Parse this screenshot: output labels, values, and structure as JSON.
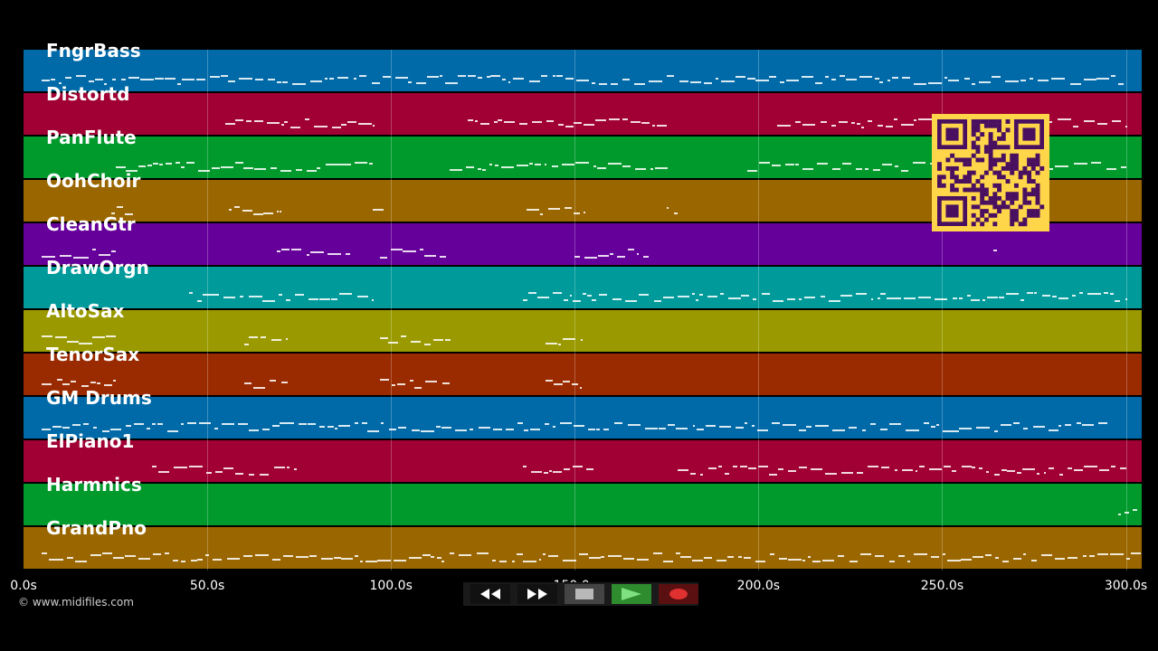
{
  "tracks": [
    {
      "name": "FngrBass",
      "color": "#006aa8"
    },
    {
      "name": "Distortd",
      "color": "#a10035"
    },
    {
      "name": "PanFlute",
      "color": "#009a2c"
    },
    {
      "name": "OohChoir",
      "color": "#9a6600"
    },
    {
      "name": "CleanGtr",
      "color": "#66009a"
    },
    {
      "name": "DrawOrgn",
      "color": "#009a9a"
    },
    {
      "name": "AltoSax",
      "color": "#9a9a00"
    },
    {
      "name": "TenorSax",
      "color": "#9a2a00"
    },
    {
      "name": "GM Drums",
      "color": "#006aa8"
    },
    {
      "name": "ElPiano1",
      "color": "#a10035"
    },
    {
      "name": "Harmnics",
      "color": "#009a2c"
    },
    {
      "name": "GrandPno",
      "color": "#9a6600"
    }
  ],
  "time_axis": {
    "max_seconds": 304.3,
    "ticks": [
      "0.0s",
      "50.0s",
      "100.0s",
      "150.0s",
      "200.0s",
      "250.0s",
      "300.0s"
    ],
    "tick_values": [
      0,
      50,
      100,
      150,
      200,
      250,
      300
    ]
  },
  "copyright": "© www.midifiles.com",
  "transport": {
    "rewind_icon": "rewind-icon",
    "fast_forward_icon": "fast-forward-icon",
    "stop_icon": "stop-icon",
    "play_icon": "play-icon",
    "record_icon": "record-icon",
    "play_color": "#2e8b2e",
    "record_color": "#e03030"
  },
  "qr_code": {
    "color": "#ffd64a"
  }
}
